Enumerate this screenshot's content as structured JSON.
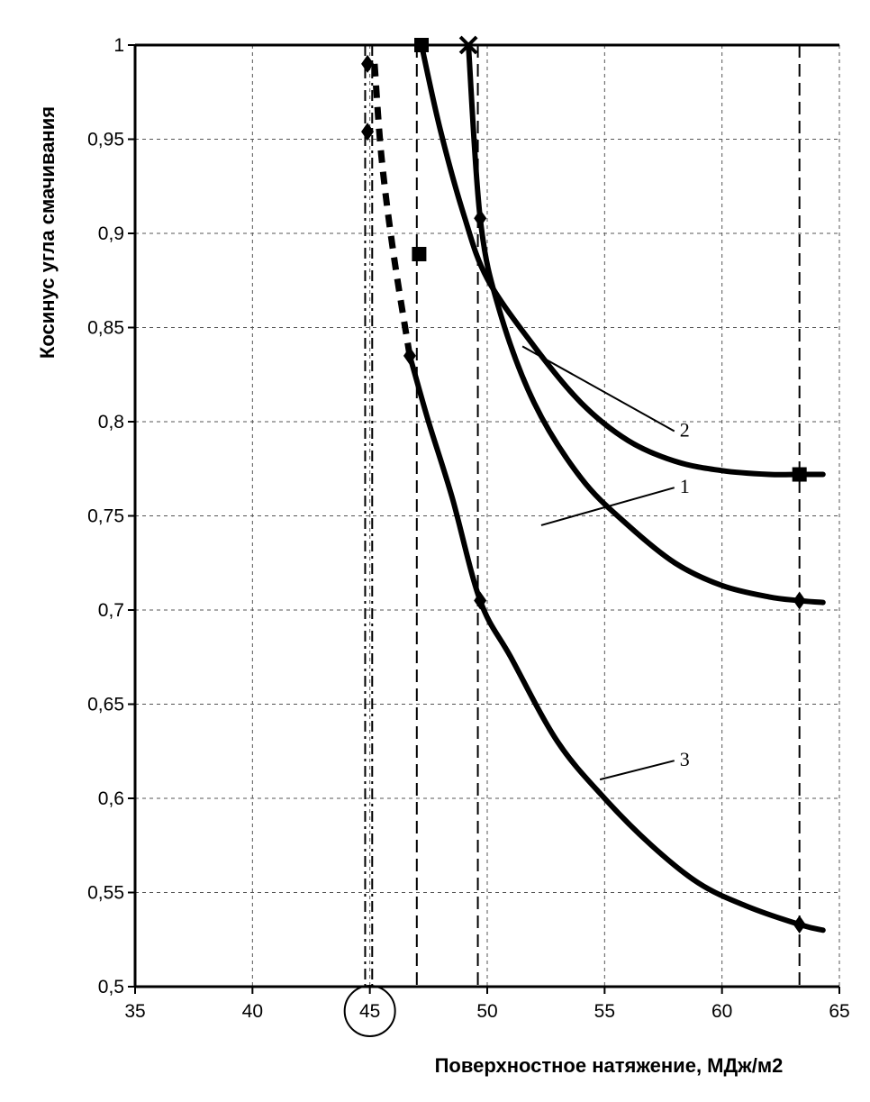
{
  "chart_data": {
    "type": "line",
    "xlabel": "Поверхностное натяжение, МДж/м2",
    "ylabel": "Косинус угла смачивания",
    "xlim": [
      35,
      65
    ],
    "ylim": [
      0.5,
      1
    ],
    "x_ticks": [
      "35",
      "40",
      "45",
      "50",
      "55",
      "60",
      "65"
    ],
    "y_ticks": [
      "0,5",
      "0,55",
      "0,6",
      "0,65",
      "0,7",
      "0,75",
      "0,8",
      "0,85",
      "0,9",
      "0,95",
      "1"
    ],
    "highlighted_tick": "45",
    "grid": true,
    "series": [
      {
        "name": "1",
        "style": "solid",
        "points": [
          [
            49.2,
            1.0
          ],
          [
            49.7,
            0.908
          ],
          [
            50.5,
            0.86
          ],
          [
            52,
            0.81
          ],
          [
            54,
            0.77
          ],
          [
            56,
            0.745
          ],
          [
            58,
            0.725
          ],
          [
            60,
            0.713
          ],
          [
            62,
            0.707
          ],
          [
            63.3,
            0.705
          ],
          [
            64.3,
            0.704
          ]
        ],
        "markers": [
          [
            49.2,
            1.0
          ],
          [
            49.7,
            0.908
          ],
          [
            63.3,
            0.705
          ]
        ]
      },
      {
        "name": "2",
        "style": "solid",
        "points": [
          [
            47.2,
            1.0
          ],
          [
            48,
            0.955
          ],
          [
            49,
            0.91
          ],
          [
            50,
            0.876
          ],
          [
            52,
            0.84
          ],
          [
            54,
            0.81
          ],
          [
            56,
            0.79
          ],
          [
            58,
            0.779
          ],
          [
            60,
            0.774
          ],
          [
            62,
            0.772
          ],
          [
            63.3,
            0.772
          ],
          [
            64.3,
            0.772
          ]
        ],
        "markers": [
          [
            47.2,
            1.0
          ],
          [
            63.3,
            0.772
          ]
        ]
      },
      {
        "name": "3",
        "style": "solid",
        "points": [
          [
            46.7,
            0.835
          ],
          [
            47.5,
            0.8
          ],
          [
            48.5,
            0.76
          ],
          [
            49.7,
            0.705
          ],
          [
            51,
            0.675
          ],
          [
            53,
            0.63
          ],
          [
            55,
            0.6
          ],
          [
            57,
            0.575
          ],
          [
            59,
            0.555
          ],
          [
            61,
            0.543
          ],
          [
            63.3,
            0.533
          ],
          [
            64.3,
            0.53
          ]
        ],
        "markers": [
          [
            46.7,
            0.835
          ],
          [
            49.7,
            0.705
          ],
          [
            63.3,
            0.533
          ]
        ]
      },
      {
        "name": "",
        "style": "dashed",
        "points": [
          [
            45.2,
            0.99
          ],
          [
            45.5,
            0.94
          ],
          [
            46,
            0.89
          ],
          [
            46.7,
            0.835
          ]
        ],
        "markers": [
          [
            44.9,
            0.954
          ],
          [
            44.9,
            0.99
          ],
          [
            47.1,
            0.889
          ]
        ]
      }
    ],
    "vertical_lines": [
      {
        "x": 44.8,
        "style": "dashdot"
      },
      {
        "x": 45.1,
        "style": "dashdot"
      },
      {
        "x": 47,
        "style": "dashed"
      },
      {
        "x": 49.6,
        "style": "dashed"
      },
      {
        "x": 63.3,
        "style": "dashed"
      }
    ],
    "annotations": [
      {
        "text": "2",
        "point": [
          51.5,
          0.84
        ],
        "label_at": [
          58.2,
          0.795
        ]
      },
      {
        "text": "1",
        "point": [
          52.3,
          0.745
        ],
        "label_at": [
          58.2,
          0.765
        ]
      },
      {
        "text": "3",
        "point": [
          54.8,
          0.61
        ],
        "label_at": [
          58.2,
          0.62
        ]
      }
    ]
  }
}
